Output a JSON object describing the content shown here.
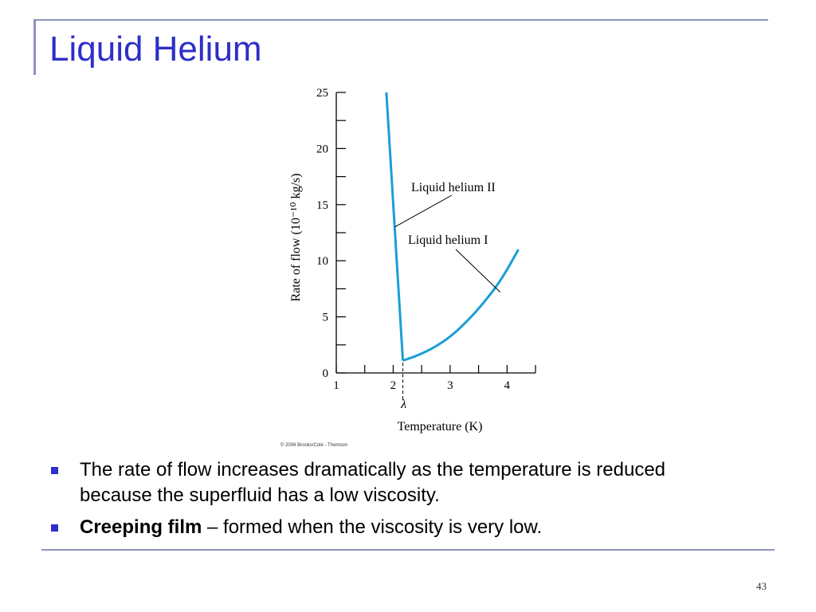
{
  "slide": {
    "title": "Liquid Helium",
    "page_number": "43",
    "copyright": "© 2006 Brooks/Cole - Thomson"
  },
  "bullets": [
    {
      "text": "The rate of flow increases dramatically as the temperature is reduced because the superfluid has a low viscosity."
    },
    {
      "term": "Creeping film",
      "text": " – formed when the viscosity is very low."
    }
  ],
  "chart_data": {
    "type": "line",
    "xlabel": "Temperature (K)",
    "ylabel": "Rate of flow (10⁻¹⁰ kg/s)",
    "xlim": [
      1,
      4.5
    ],
    "ylim": [
      0,
      25
    ],
    "x_ticks": [
      1,
      2,
      3,
      4
    ],
    "y_ticks": [
      0,
      5,
      10,
      15,
      20,
      25
    ],
    "lambda_label": "λ",
    "lambda_x": 2.17,
    "series": [
      {
        "name": "Liquid helium II",
        "x": [
          1.88,
          2.17
        ],
        "y": [
          25,
          1.1
        ]
      },
      {
        "name": "Liquid helium I",
        "x": [
          2.17,
          2.4,
          2.7,
          3.0,
          3.3,
          3.6,
          3.9,
          4.2
        ],
        "y": [
          1.1,
          1.5,
          2.2,
          3.2,
          4.6,
          6.3,
          8.3,
          11.0
        ]
      }
    ],
    "line_color": "#1a9fd4"
  }
}
